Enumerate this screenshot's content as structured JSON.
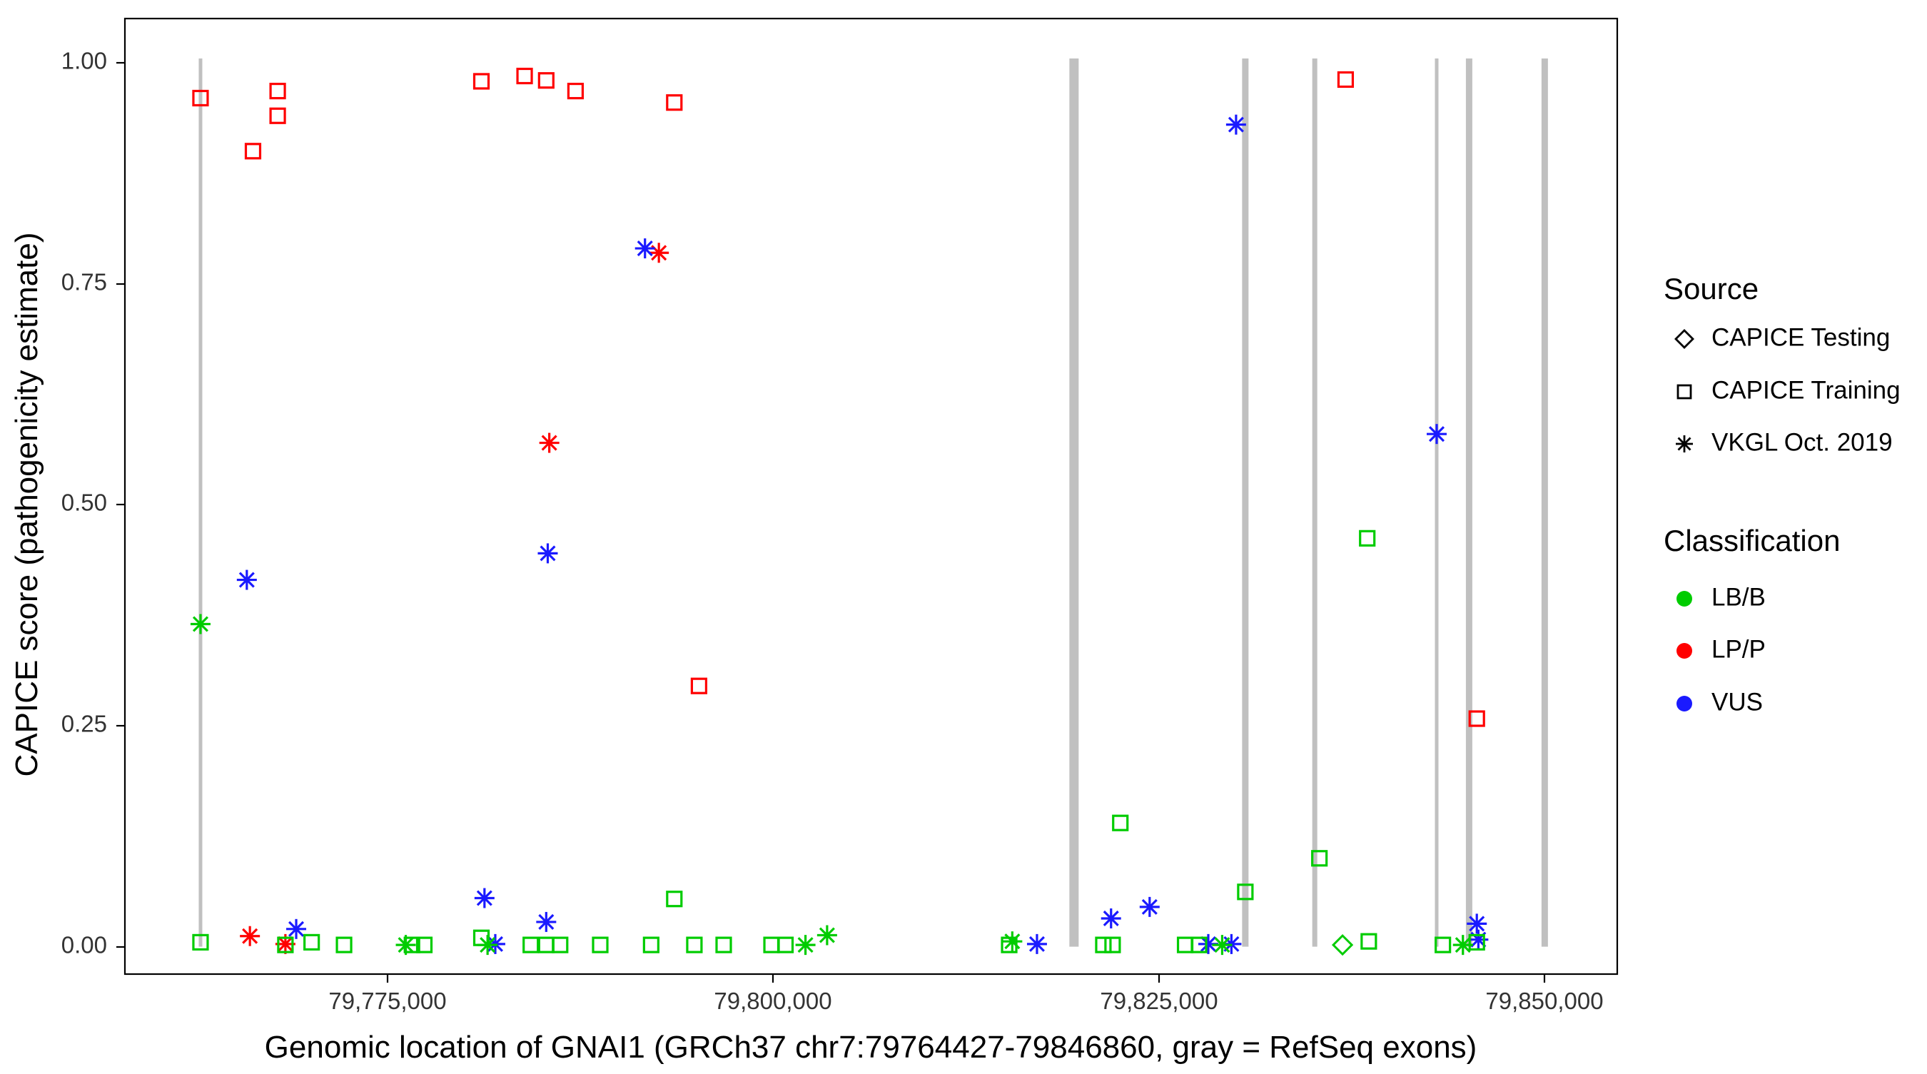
{
  "figure": {
    "x_axis": {
      "label": "Genomic location of GNAI1 (GRCh37 chr7:79764427-79846860, gray = RefSeq exons)",
      "ticks": [
        "79,775,000",
        "79,800,000",
        "79,825,000",
        "79,850,000"
      ],
      "tick_values": [
        79775000,
        79800000,
        79825000,
        79850000
      ],
      "domain": [
        79758000,
        79854700
      ]
    },
    "y_axis": {
      "label": "CAPICE score (pathogenicity estimate)",
      "ticks": [
        "0.00",
        "0.25",
        "0.50",
        "0.75",
        "1.00"
      ],
      "tick_values": [
        0,
        0.25,
        0.5,
        0.75,
        1.0
      ],
      "domain": [
        -0.031,
        1.05
      ]
    },
    "legend": {
      "source": {
        "title": "Source",
        "items": [
          {
            "label": "CAPICE Testing",
            "shape": "diamond"
          },
          {
            "label": "CAPICE Training",
            "shape": "square"
          },
          {
            "label": "VKGL Oct. 2019",
            "shape": "asterisk"
          }
        ]
      },
      "classification": {
        "title": "Classification",
        "items": [
          {
            "label": "LB/B",
            "color": "#00CC00"
          },
          {
            "label": "LP/P",
            "color": "#FF0000"
          },
          {
            "label": "VUS",
            "color": "#1A1AFF"
          }
        ]
      }
    },
    "colors": {
      "LB/B": "#00CC00",
      "LP/P": "#FF0000",
      "VUS": "#1A1AFF",
      "exon": "#C0C0C0"
    }
  },
  "chart_data": {
    "type": "scatter",
    "title": "",
    "xlabel": "Genomic location of GNAI1 (GRCh37 chr7:79764427-79846860, gray = RefSeq exons)",
    "ylabel": "CAPICE score (pathogenicity estimate)",
    "xlim": [
      79758000,
      79854700
    ],
    "ylim": [
      -0.031,
      1.05
    ],
    "grid": false,
    "legend_position": "right",
    "shape_by_source": {
      "testing": "diamond",
      "training": "square",
      "vkgl": "asterisk"
    },
    "exons": [
      {
        "x": 79762900,
        "w": 5
      },
      {
        "x": 79819500,
        "w": 13
      },
      {
        "x": 79830600,
        "w": 9
      },
      {
        "x": 79835100,
        "w": 7
      },
      {
        "x": 79843000,
        "w": 5
      },
      {
        "x": 79845100,
        "w": 9
      },
      {
        "x": 79850000,
        "w": 9
      }
    ],
    "points": [
      {
        "x": 79762900,
        "y": 0.96,
        "source": "training",
        "class": "LP/P"
      },
      {
        "x": 79766300,
        "y": 0.9,
        "source": "training",
        "class": "LP/P"
      },
      {
        "x": 79767900,
        "y": 0.968,
        "source": "training",
        "class": "LP/P"
      },
      {
        "x": 79767900,
        "y": 0.94,
        "source": "training",
        "class": "LP/P"
      },
      {
        "x": 79781100,
        "y": 0.979,
        "source": "training",
        "class": "LP/P"
      },
      {
        "x": 79783900,
        "y": 0.985,
        "source": "training",
        "class": "LP/P"
      },
      {
        "x": 79785300,
        "y": 0.98,
        "source": "training",
        "class": "LP/P"
      },
      {
        "x": 79787200,
        "y": 0.968,
        "source": "training",
        "class": "LP/P"
      },
      {
        "x": 79793600,
        "y": 0.955,
        "source": "training",
        "class": "LP/P"
      },
      {
        "x": 79795200,
        "y": 0.295,
        "source": "training",
        "class": "LP/P"
      },
      {
        "x": 79837100,
        "y": 0.981,
        "source": "training",
        "class": "LP/P"
      },
      {
        "x": 79845600,
        "y": 0.258,
        "source": "training",
        "class": "LP/P"
      },
      {
        "x": 79792600,
        "y": 0.785,
        "source": "vkgl",
        "class": "LP/P"
      },
      {
        "x": 79785500,
        "y": 0.57,
        "source": "vkgl",
        "class": "LP/P"
      },
      {
        "x": 79766100,
        "y": 0.012,
        "source": "vkgl",
        "class": "LP/P"
      },
      {
        "x": 79768400,
        "y": 0.003,
        "source": "vkgl",
        "class": "LP/P"
      },
      {
        "x": 79791700,
        "y": 0.79,
        "source": "vkgl",
        "class": "VUS"
      },
      {
        "x": 79785400,
        "y": 0.445,
        "source": "vkgl",
        "class": "VUS"
      },
      {
        "x": 79765900,
        "y": 0.415,
        "source": "vkgl",
        "class": "VUS"
      },
      {
        "x": 79830000,
        "y": 0.93,
        "source": "vkgl",
        "class": "VUS"
      },
      {
        "x": 79843000,
        "y": 0.58,
        "source": "vkgl",
        "class": "VUS"
      },
      {
        "x": 79781300,
        "y": 0.055,
        "source": "vkgl",
        "class": "VUS"
      },
      {
        "x": 79785300,
        "y": 0.028,
        "source": "vkgl",
        "class": "VUS"
      },
      {
        "x": 79769100,
        "y": 0.02,
        "source": "vkgl",
        "class": "VUS"
      },
      {
        "x": 79821900,
        "y": 0.032,
        "source": "vkgl",
        "class": "VUS"
      },
      {
        "x": 79824400,
        "y": 0.045,
        "source": "vkgl",
        "class": "VUS"
      },
      {
        "x": 79817100,
        "y": 0.003,
        "source": "vkgl",
        "class": "VUS"
      },
      {
        "x": 79828200,
        "y": 0.003,
        "source": "vkgl",
        "class": "VUS"
      },
      {
        "x": 79829700,
        "y": 0.003,
        "source": "vkgl",
        "class": "VUS"
      },
      {
        "x": 79845600,
        "y": 0.026,
        "source": "vkgl",
        "class": "VUS"
      },
      {
        "x": 79845700,
        "y": 0.008,
        "source": "vkgl",
        "class": "VUS"
      },
      {
        "x": 79782000,
        "y": 0.003,
        "source": "vkgl",
        "class": "VUS"
      },
      {
        "x": 79762900,
        "y": 0.005,
        "source": "training",
        "class": "LB/B"
      },
      {
        "x": 79770100,
        "y": 0.005,
        "source": "training",
        "class": "LB/B"
      },
      {
        "x": 79772200,
        "y": 0.002,
        "source": "training",
        "class": "LB/B"
      },
      {
        "x": 79776600,
        "y": 0.002,
        "source": "training",
        "class": "LB/B"
      },
      {
        "x": 79777400,
        "y": 0.002,
        "source": "training",
        "class": "LB/B"
      },
      {
        "x": 79781100,
        "y": 0.01,
        "source": "training",
        "class": "LB/B"
      },
      {
        "x": 79784300,
        "y": 0.002,
        "source": "training",
        "class": "LB/B"
      },
      {
        "x": 79785300,
        "y": 0.002,
        "source": "training",
        "class": "LB/B"
      },
      {
        "x": 79786200,
        "y": 0.002,
        "source": "training",
        "class": "LB/B"
      },
      {
        "x": 79788800,
        "y": 0.002,
        "source": "training",
        "class": "LB/B"
      },
      {
        "x": 79792100,
        "y": 0.002,
        "source": "training",
        "class": "LB/B"
      },
      {
        "x": 79793600,
        "y": 0.054,
        "source": "training",
        "class": "LB/B"
      },
      {
        "x": 79794900,
        "y": 0.002,
        "source": "training",
        "class": "LB/B"
      },
      {
        "x": 79796800,
        "y": 0.002,
        "source": "training",
        "class": "LB/B"
      },
      {
        "x": 79799900,
        "y": 0.002,
        "source": "training",
        "class": "LB/B"
      },
      {
        "x": 79800800,
        "y": 0.002,
        "source": "training",
        "class": "LB/B"
      },
      {
        "x": 79815300,
        "y": 0.002,
        "source": "training",
        "class": "LB/B"
      },
      {
        "x": 79821400,
        "y": 0.002,
        "source": "training",
        "class": "LB/B"
      },
      {
        "x": 79822000,
        "y": 0.002,
        "source": "training",
        "class": "LB/B"
      },
      {
        "x": 79822500,
        "y": 0.14,
        "source": "training",
        "class": "LB/B"
      },
      {
        "x": 79826700,
        "y": 0.002,
        "source": "training",
        "class": "LB/B"
      },
      {
        "x": 79827600,
        "y": 0.002,
        "source": "training",
        "class": "LB/B"
      },
      {
        "x": 79830600,
        "y": 0.062,
        "source": "training",
        "class": "LB/B"
      },
      {
        "x": 79835400,
        "y": 0.1,
        "source": "training",
        "class": "LB/B"
      },
      {
        "x": 79838500,
        "y": 0.462,
        "source": "training",
        "class": "LB/B"
      },
      {
        "x": 79838600,
        "y": 0.006,
        "source": "training",
        "class": "LB/B"
      },
      {
        "x": 79843400,
        "y": 0.002,
        "source": "training",
        "class": "LB/B"
      },
      {
        "x": 79845600,
        "y": 0.005,
        "source": "training",
        "class": "LB/B"
      },
      {
        "x": 79768400,
        "y": 0.002,
        "source": "training",
        "class": "LB/B"
      },
      {
        "x": 79762900,
        "y": 0.365,
        "source": "vkgl",
        "class": "LB/B"
      },
      {
        "x": 79776200,
        "y": 0.002,
        "source": "vkgl",
        "class": "LB/B"
      },
      {
        "x": 79781500,
        "y": 0.002,
        "source": "vkgl",
        "class": "LB/B"
      },
      {
        "x": 79802100,
        "y": 0.002,
        "source": "vkgl",
        "class": "LB/B"
      },
      {
        "x": 79803500,
        "y": 0.013,
        "source": "vkgl",
        "class": "LB/B"
      },
      {
        "x": 79815500,
        "y": 0.006,
        "source": "vkgl",
        "class": "LB/B"
      },
      {
        "x": 79829100,
        "y": 0.002,
        "source": "vkgl",
        "class": "LB/B"
      },
      {
        "x": 79844700,
        "y": 0.002,
        "source": "vkgl",
        "class": "LB/B"
      },
      {
        "x": 79836900,
        "y": 0.002,
        "source": "testing",
        "class": "LB/B"
      }
    ]
  }
}
